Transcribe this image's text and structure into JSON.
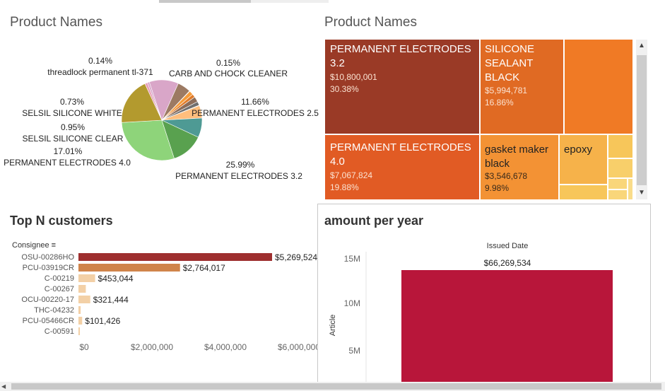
{
  "panels": {
    "pie_title": "Product Names",
    "treemap_title": "Product Names",
    "bar_title": "Top N customers",
    "year_title": "amount per year"
  },
  "chart_data": [
    {
      "type": "pie",
      "title": "Product Names",
      "slices": [
        {
          "label": "PERMANENT ELECTRODES 3.2",
          "pct": "25.99%",
          "value": 25.99,
          "color": "#8ed47a"
        },
        {
          "label": "PERMANENT ELECTRODES 4.0",
          "pct": "17.01%",
          "value": 17.01,
          "color": "#b39a2e"
        },
        {
          "label": "SELSIL SILICONE CLEAR",
          "pct": "0.95%",
          "value": 0.95,
          "color": "#e8a0b8"
        },
        {
          "label": "SELSIL SILICONE WHITE",
          "pct": "0.73%",
          "value": 0.73,
          "color": "#d6a3c9"
        },
        {
          "label": "",
          "pct": "",
          "value": 10.5,
          "color": "#d9a6c8"
        },
        {
          "label": "",
          "pct": "",
          "value": 4.8,
          "color": "#9c7a63"
        },
        {
          "label": "threadlock permanent tl-371",
          "pct": "0.14%",
          "value": 0.14,
          "color": "#f28e2b"
        },
        {
          "label": "",
          "pct": "",
          "value": 1.5,
          "color": "#f59b3a"
        },
        {
          "label": "",
          "pct": "",
          "value": 1.2,
          "color": "#e07b2a"
        },
        {
          "label": "",
          "pct": "",
          "value": 1.9,
          "color": "#8c6d5a"
        },
        {
          "label": "",
          "pct": "",
          "value": 1.4,
          "color": "#6f6f6f"
        },
        {
          "label": "CARB AND CHOCK CLEANER",
          "pct": "0.15%",
          "value": 0.15,
          "color": "#ffbe7d"
        },
        {
          "label": "",
          "pct": "",
          "value": 4.5,
          "color": "#ffbe7d"
        },
        {
          "label": "",
          "pct": "",
          "value": 7.0,
          "color": "#4e9a94"
        },
        {
          "label": "PERMANENT ELECTRODES 2.5",
          "pct": "11.66%",
          "value": 11.66,
          "color": "#59a14f"
        }
      ]
    },
    {
      "type": "treemap",
      "title": "Product Names",
      "items": [
        {
          "label": "PERMANENT ELECTRODES 3.2",
          "value": "$10,800,001",
          "pct": "30.38%",
          "color": "#9a3a26"
        },
        {
          "label": "SILICONE SEALANT BLACK",
          "value": "$5,994,781",
          "pct": "16.86%",
          "color": "#e06a23"
        },
        {
          "label": "PERMANENT ELECTRODES 4.0",
          "value": "$7,067,824",
          "pct": "19.88%",
          "color": "#e15b24"
        },
        {
          "label": "gasket maker black",
          "value": "$3,546,678",
          "pct": "9.98%",
          "color": "#f39234"
        },
        {
          "label": "epoxy",
          "value": "",
          "pct": "",
          "color": "#f6b24a"
        }
      ]
    },
    {
      "type": "bar",
      "title": "Top N customers",
      "ylabel": "Consignee",
      "categories": [
        "OSU-00286HO",
        "PCU-03919CR",
        "C-00219",
        "C-00267",
        "OCU-00220-17",
        "THC-04232",
        "PCU-05466CR",
        "C-00591"
      ],
      "values": [
        5269524,
        2764017,
        453044,
        200000,
        321444,
        60000,
        101426,
        8000
      ],
      "labels": [
        "$5,269,524",
        "$2,764,017",
        "$453,044",
        "",
        "$321,444",
        "",
        "$101,426",
        ""
      ],
      "colors": [
        "#9e2f2f",
        "#d0844a",
        "#f3d0a6",
        "#f3d0a6",
        "#f3d0a6",
        "#f3d0a6",
        "#f3d0a6",
        "#f3d0a6"
      ],
      "xticks": [
        "$0",
        "$2,000,000",
        "$4,000,000",
        "$6,000,000"
      ],
      "xlim": [
        0,
        6000000
      ]
    },
    {
      "type": "bar",
      "title": "amount per year",
      "xlabel": "Issued Date",
      "ylabel": "Article",
      "value_label": "$66,269,534",
      "yticks": [
        "15M",
        "10M",
        "5M"
      ],
      "color": "#b8163a"
    }
  ]
}
